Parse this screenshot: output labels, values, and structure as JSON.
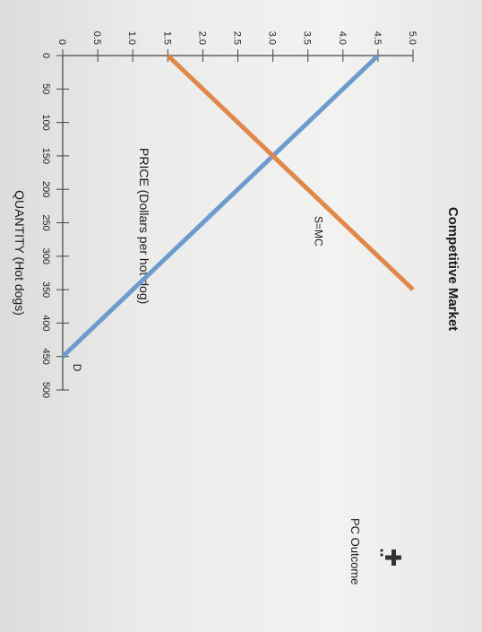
{
  "chart_data": {
    "type": "line",
    "title": "Competitive Market",
    "xlabel": "QUANTITY (Hot dogs)",
    "ylabel": "PRICE (Dollars per hot dog)",
    "xlim": [
      0,
      500
    ],
    "ylim": [
      0,
      5.0
    ],
    "x_ticks": [
      "0",
      "50",
      "100",
      "150",
      "200",
      "250",
      "300",
      "350",
      "400",
      "450",
      "500"
    ],
    "y_ticks": [
      "0",
      "0.5",
      "1.0",
      "1.5",
      "2.0",
      "2.5",
      "3.0",
      "3.5",
      "4.0",
      "4.5",
      "5.0"
    ],
    "series": [
      {
        "name": "D",
        "color": "#6e9bcd",
        "points": [
          [
            0,
            4.5
          ],
          [
            450,
            0
          ]
        ]
      },
      {
        "name": "S=MC",
        "color": "#e0874a",
        "points": [
          [
            0,
            1.5
          ],
          [
            350,
            5.0
          ]
        ]
      }
    ],
    "legend": {
      "label": "PC Outcome",
      "icon": "plus-marker-icon"
    },
    "grid": false
  }
}
